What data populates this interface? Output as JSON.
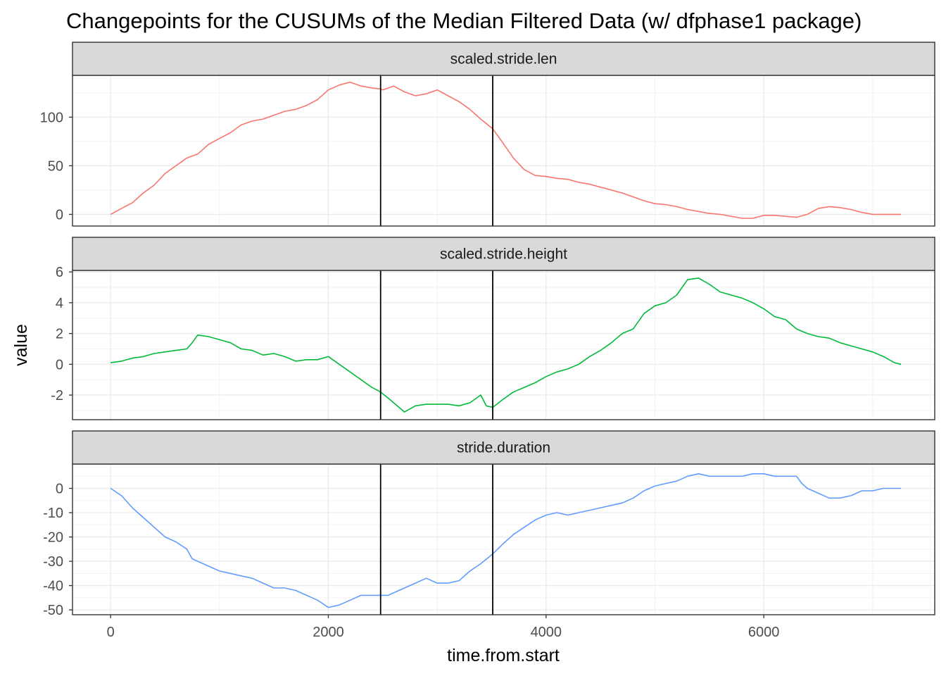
{
  "chart_data": {
    "type": "line",
    "title": "Changepoints for the CUSUMs of the Median Filtered Data (w/ dfphase1 package)",
    "xlabel": "time.from.start",
    "ylabel": "value",
    "x_ticks": [
      "0",
      "2000",
      "4000",
      "6000"
    ],
    "x_tick_values": [
      0,
      2000,
      4000,
      6000
    ],
    "xlim": [
      -350,
      7570
    ],
    "changepoints": [
      2480,
      3510
    ],
    "grid": true,
    "legend": "none",
    "panels": [
      {
        "strip": "scaled.stride.len",
        "color": "#F8766D",
        "ylim": [
          -12,
          143
        ],
        "y_ticks": [
          0,
          50,
          100
        ],
        "y_tick_labels": [
          "0",
          "50",
          "100"
        ],
        "x": [
          0,
          100,
          200,
          300,
          400,
          500,
          600,
          700,
          800,
          900,
          1000,
          1100,
          1200,
          1300,
          1400,
          1500,
          1600,
          1700,
          1800,
          1900,
          2000,
          2100,
          2200,
          2300,
          2400,
          2480,
          2500,
          2600,
          2700,
          2800,
          2900,
          3000,
          3100,
          3200,
          3300,
          3400,
          3510,
          3600,
          3700,
          3800,
          3900,
          4000,
          4100,
          4200,
          4300,
          4400,
          4500,
          4600,
          4700,
          4800,
          4900,
          5000,
          5100,
          5200,
          5300,
          5400,
          5500,
          5600,
          5700,
          5800,
          5900,
          6000,
          6100,
          6200,
          6300,
          6400,
          6500,
          6600,
          6700,
          6800,
          6900,
          7000,
          7100,
          7200,
          7260
        ],
        "y": [
          0,
          6,
          12,
          22,
          30,
          42,
          50,
          58,
          62,
          72,
          78,
          84,
          92,
          96,
          98,
          102,
          106,
          108,
          112,
          118,
          128,
          133,
          136,
          132,
          130,
          129,
          128,
          132,
          126,
          122,
          124,
          128,
          122,
          116,
          108,
          98,
          88,
          74,
          58,
          46,
          40,
          39,
          37,
          36,
          33,
          31,
          28,
          25,
          22,
          18,
          14,
          11,
          10,
          8,
          5,
          3,
          1,
          0,
          -2,
          -4,
          -4,
          -1,
          -1,
          -2,
          -3,
          0,
          6,
          8,
          7,
          5,
          2,
          0,
          0,
          0,
          0
        ]
      },
      {
        "strip": "scaled.stride.height",
        "color": "#00BA38",
        "ylim": [
          -3.6,
          6.1
        ],
        "y_ticks": [
          -2,
          0,
          2,
          4,
          6
        ],
        "y_tick_labels": [
          "-2",
          "0",
          "2",
          "4",
          "6"
        ],
        "x": [
          0,
          100,
          200,
          300,
          400,
          500,
          600,
          700,
          750,
          800,
          900,
          1000,
          1100,
          1200,
          1300,
          1400,
          1500,
          1600,
          1700,
          1800,
          1900,
          2000,
          2100,
          2200,
          2300,
          2400,
          2480,
          2550,
          2600,
          2700,
          2800,
          2900,
          3000,
          3100,
          3200,
          3300,
          3400,
          3450,
          3510,
          3600,
          3700,
          3800,
          3900,
          4000,
          4100,
          4200,
          4300,
          4400,
          4500,
          4600,
          4700,
          4800,
          4900,
          5000,
          5100,
          5200,
          5300,
          5400,
          5500,
          5600,
          5700,
          5800,
          5900,
          6000,
          6100,
          6200,
          6300,
          6400,
          6500,
          6600,
          6700,
          6800,
          6900,
          7000,
          7100,
          7200,
          7260
        ],
        "y": [
          0.1,
          0.2,
          0.4,
          0.5,
          0.7,
          0.8,
          0.9,
          1.0,
          1.4,
          1.9,
          1.8,
          1.6,
          1.4,
          1.0,
          0.9,
          0.6,
          0.7,
          0.5,
          0.2,
          0.3,
          0.3,
          0.5,
          0.0,
          -0.5,
          -1.0,
          -1.5,
          -1.8,
          -2.2,
          -2.5,
          -3.1,
          -2.7,
          -2.6,
          -2.6,
          -2.6,
          -2.7,
          -2.5,
          -2.0,
          -2.7,
          -2.8,
          -2.3,
          -1.8,
          -1.5,
          -1.2,
          -0.8,
          -0.5,
          -0.3,
          0.0,
          0.5,
          0.9,
          1.4,
          2.0,
          2.3,
          3.3,
          3.8,
          4.0,
          4.5,
          5.5,
          5.6,
          5.2,
          4.7,
          4.5,
          4.3,
          4.0,
          3.6,
          3.1,
          2.9,
          2.3,
          2.0,
          1.8,
          1.7,
          1.4,
          1.2,
          1.0,
          0.8,
          0.5,
          0.1,
          0.0
        ]
      },
      {
        "strip": "stride.duration",
        "color": "#619CFF",
        "ylim": [
          -52,
          10
        ],
        "y_ticks": [
          -50,
          -40,
          -30,
          -20,
          -10,
          0
        ],
        "y_tick_labels": [
          "-50",
          "-40",
          "-30",
          "-20",
          "-10",
          "0"
        ],
        "x": [
          0,
          100,
          200,
          300,
          400,
          500,
          600,
          700,
          750,
          800,
          900,
          1000,
          1100,
          1200,
          1300,
          1400,
          1500,
          1600,
          1700,
          1800,
          1900,
          2000,
          2100,
          2200,
          2300,
          2400,
          2480,
          2550,
          2600,
          2700,
          2800,
          2900,
          3000,
          3100,
          3200,
          3300,
          3400,
          3510,
          3600,
          3700,
          3800,
          3900,
          4000,
          4100,
          4200,
          4300,
          4400,
          4500,
          4600,
          4700,
          4800,
          4900,
          5000,
          5100,
          5200,
          5300,
          5400,
          5500,
          5600,
          5700,
          5800,
          5900,
          6000,
          6100,
          6200,
          6300,
          6350,
          6400,
          6500,
          6600,
          6700,
          6800,
          6900,
          7000,
          7100,
          7200,
          7260
        ],
        "y": [
          0,
          -3,
          -8,
          -12,
          -16,
          -20,
          -22,
          -25,
          -29,
          -30,
          -32,
          -34,
          -35,
          -36,
          -37,
          -39,
          -41,
          -41,
          -42,
          -44,
          -46,
          -49,
          -48,
          -46,
          -44,
          -44,
          -44,
          -44,
          -43,
          -41,
          -39,
          -37,
          -39,
          -39,
          -38,
          -34,
          -31,
          -27,
          -23,
          -19,
          -16,
          -13,
          -11,
          -10,
          -11,
          -10,
          -9,
          -8,
          -7,
          -6,
          -4,
          -1,
          1,
          2,
          3,
          5,
          6,
          5,
          5,
          5,
          5,
          6,
          6,
          5,
          5,
          5,
          2,
          0,
          -2,
          -4,
          -4,
          -3,
          -1,
          -1,
          0,
          0,
          0
        ]
      }
    ]
  }
}
